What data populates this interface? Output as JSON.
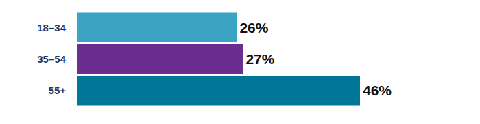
{
  "chart_data": {
    "type": "bar",
    "orientation": "horizontal",
    "categories": [
      "18–34",
      "35–54",
      "55+"
    ],
    "values": [
      26,
      27,
      46
    ],
    "value_labels": [
      "26%",
      "27%",
      "46%"
    ],
    "colors": [
      "#3ba3c3",
      "#6b2d90",
      "#007699"
    ],
    "xlim": [
      0,
      46
    ],
    "data_labels": true,
    "tick_labels": "y",
    "grid": false
  }
}
